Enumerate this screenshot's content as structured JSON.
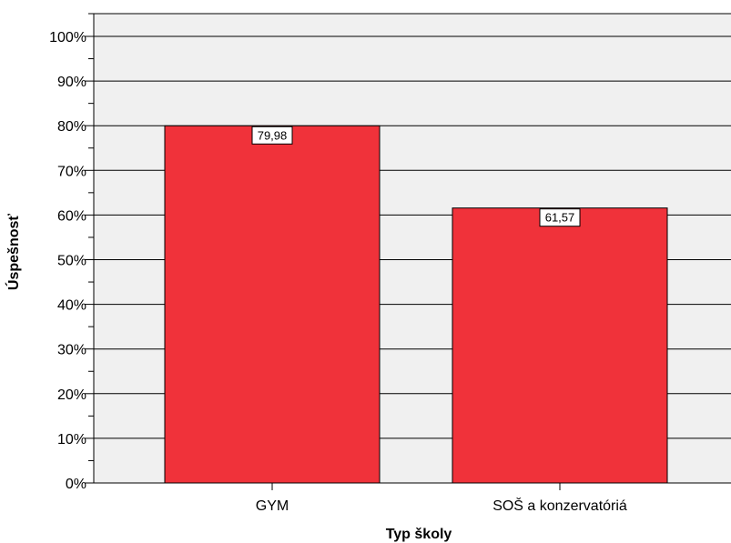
{
  "chart_data": {
    "type": "bar",
    "title": "",
    "xlabel": "Typ školy",
    "ylabel": "Úspešnosť",
    "categories": [
      "GYM",
      "SOŠ a konzervatóriá"
    ],
    "values": [
      79.98,
      61.57
    ],
    "data_labels": [
      "79,98",
      "61,57"
    ],
    "ylim": [
      0,
      100
    ],
    "y_ticks": [
      "0%",
      "10%",
      "20%",
      "30%",
      "40%",
      "50%",
      "60%",
      "70%",
      "80%",
      "90%",
      "100%"
    ],
    "grid": true,
    "legend": "none",
    "colors": {
      "bar": "#f0323a",
      "plot_background": "#f0f0f0",
      "axis": "#000000"
    }
  }
}
